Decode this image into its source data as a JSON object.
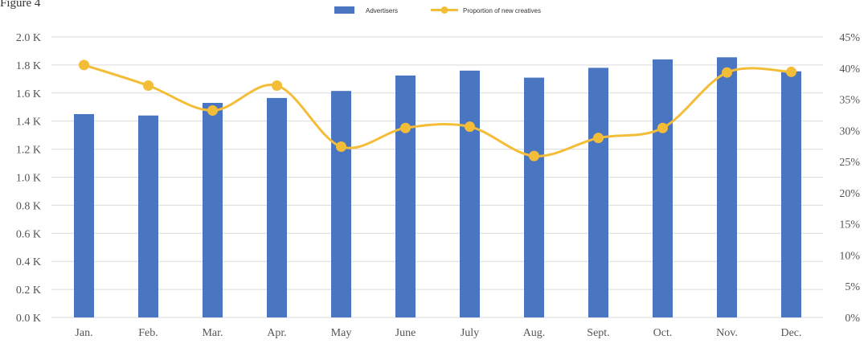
{
  "cut_text": "Figure 4",
  "chart_data": {
    "type": "bar",
    "categories": [
      "Jan.",
      "Feb.",
      "Mar.",
      "Apr.",
      "May",
      "June",
      "July",
      "Aug.",
      "Sept.",
      "Oct.",
      "Nov.",
      "Dec."
    ],
    "series": [
      {
        "name": "Advertisers",
        "type": "bar",
        "axis": "left",
        "color": "#4a75c1",
        "values": [
          1450,
          1440,
          1530,
          1565,
          1615,
          1725,
          1760,
          1710,
          1780,
          1840,
          1855,
          1755
        ]
      },
      {
        "name": "Proportion of new creatives",
        "type": "line",
        "axis": "right",
        "color": "#f4bd38",
        "values": [
          40.5,
          37.2,
          33.2,
          37.2,
          27.4,
          30.4,
          30.6,
          25.9,
          28.8,
          30.4,
          39.3,
          39.4
        ]
      }
    ],
    "left_axis": {
      "ylim": [
        0,
        2000
      ],
      "ticks": [
        "0.0 K",
        "0.2 K",
        "0.4 K",
        "0.6 K",
        "0.8 K",
        "1.0 K",
        "1.2 K",
        "1.4 K",
        "1.6 K",
        "1.8 K",
        "2.0 K"
      ]
    },
    "right_axis": {
      "ylim": [
        0,
        45
      ],
      "ticks": [
        "0%",
        "5%",
        "10%",
        "15%",
        "20%",
        "25%",
        "30%",
        "35%",
        "40%",
        "45%"
      ]
    },
    "grid": true,
    "legend": "top-center",
    "title": "",
    "xlabel": "",
    "ylabel": ""
  }
}
